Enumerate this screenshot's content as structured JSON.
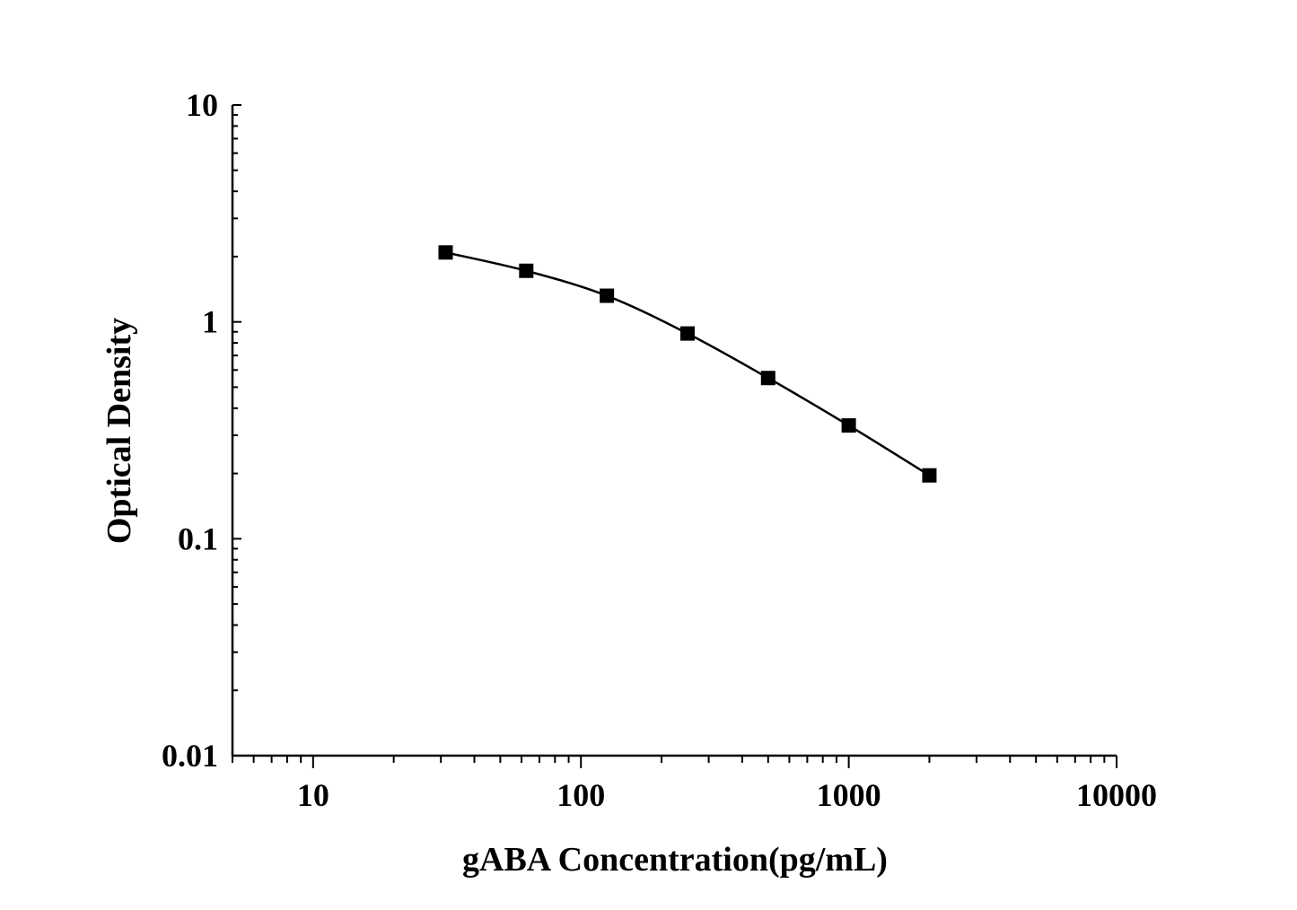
{
  "chart_data": {
    "type": "line",
    "title": "",
    "xlabel": "gABA Concentration(pg/mL)",
    "ylabel": "Optical Density",
    "x_scale": "log",
    "y_scale": "log",
    "xlim": [
      5,
      10000
    ],
    "ylim": [
      0.01,
      10
    ],
    "grid": false,
    "x_ticks": [
      {
        "value": 10,
        "label": "10"
      },
      {
        "value": 100,
        "label": "100"
      },
      {
        "value": 1000,
        "label": "1000"
      },
      {
        "value": 10000,
        "label": "10000"
      }
    ],
    "y_ticks": [
      {
        "value": 0.01,
        "label": "0.01"
      },
      {
        "value": 0.1,
        "label": "0.1"
      },
      {
        "value": 1,
        "label": "1"
      },
      {
        "value": 10,
        "label": "10"
      }
    ],
    "series": [
      {
        "marker": "square",
        "color": "#000000",
        "x": [
          31.25,
          62.5,
          125,
          250,
          500,
          1000,
          2000
        ],
        "y": [
          2.09,
          1.72,
          1.32,
          0.884,
          0.551,
          0.333,
          0.196
        ]
      }
    ]
  }
}
